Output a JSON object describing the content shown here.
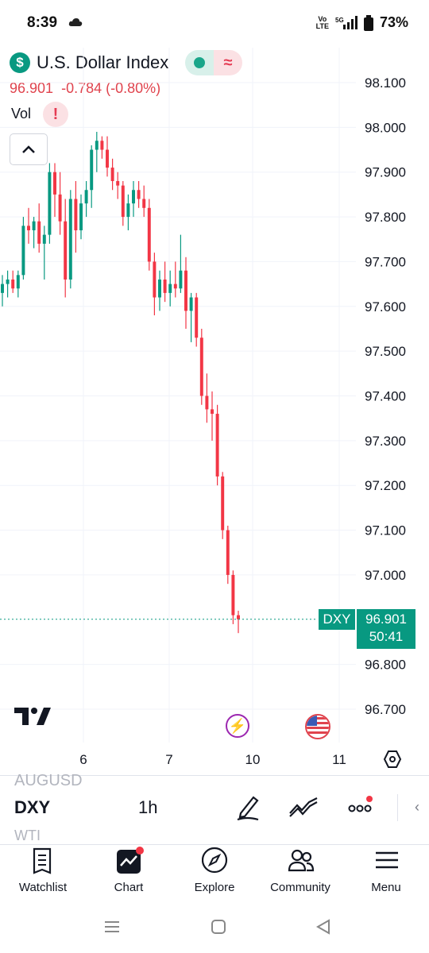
{
  "status_bar": {
    "time": "8:39",
    "volte_top": "Vo",
    "volte_bottom": "LTE",
    "network": "5G",
    "battery": "73%"
  },
  "header": {
    "symbol_name": "U.S. Dollar Index",
    "logo_glyph": "$",
    "price": "96.901",
    "change": "-0.784",
    "change_pct": "(-0.80%)",
    "vol_label": "Vol",
    "vol_alert": "!"
  },
  "chart_data": {
    "type": "candlestick",
    "symbol": "DXY",
    "interval": "1h",
    "y_ticks": [
      "98.100",
      "98.000",
      "97.900",
      "97.800",
      "97.700",
      "97.600",
      "97.500",
      "97.400",
      "97.300",
      "97.200",
      "97.100",
      "97.000",
      "96.800",
      "96.700"
    ],
    "ylim": [
      96.65,
      98.17
    ],
    "x_ticks": [
      "6",
      "7",
      "10",
      "11"
    ],
    "last_price": 96.901,
    "last_label": "DXY",
    "last_price_text": "96.901",
    "countdown": "50:41",
    "colors": {
      "up": "#089981",
      "down": "#f23645"
    },
    "candles": [
      [
        97.63,
        97.67,
        97.6,
        97.65
      ],
      [
        97.65,
        97.68,
        97.62,
        97.66
      ],
      [
        97.66,
        97.68,
        97.63,
        97.64
      ],
      [
        97.64,
        97.68,
        97.62,
        97.67
      ],
      [
        97.67,
        97.8,
        97.66,
        97.78
      ],
      [
        97.78,
        97.82,
        97.74,
        97.77
      ],
      [
        97.77,
        97.8,
        97.73,
        97.79
      ],
      [
        97.79,
        97.83,
        97.72,
        97.74
      ],
      [
        97.74,
        97.78,
        97.66,
        97.76
      ],
      [
        97.76,
        97.92,
        97.74,
        97.9
      ],
      [
        97.9,
        97.92,
        97.8,
        97.85
      ],
      [
        97.85,
        97.9,
        97.76,
        97.79
      ],
      [
        97.79,
        97.84,
        97.62,
        97.66
      ],
      [
        97.66,
        97.86,
        97.64,
        97.84
      ],
      [
        97.84,
        97.88,
        97.72,
        97.77
      ],
      [
        97.77,
        97.85,
        97.75,
        97.83
      ],
      [
        97.83,
        97.88,
        97.8,
        97.86
      ],
      [
        97.86,
        97.96,
        97.82,
        97.95
      ],
      [
        97.95,
        97.99,
        97.9,
        97.97
      ],
      [
        97.97,
        97.98,
        97.93,
        97.95
      ],
      [
        97.95,
        97.98,
        97.89,
        97.91
      ],
      [
        97.91,
        97.93,
        97.86,
        97.88
      ],
      [
        97.88,
        97.9,
        97.84,
        97.87
      ],
      [
        97.87,
        97.88,
        97.78,
        97.8
      ],
      [
        97.8,
        97.85,
        97.77,
        97.83
      ],
      [
        97.83,
        97.88,
        97.8,
        97.86
      ],
      [
        97.86,
        97.88,
        97.82,
        97.84
      ],
      [
        97.84,
        97.87,
        97.8,
        97.82
      ],
      [
        97.82,
        97.84,
        97.68,
        97.7
      ],
      [
        97.7,
        97.72,
        97.58,
        97.62
      ],
      [
        97.62,
        97.68,
        97.59,
        97.66
      ],
      [
        97.66,
        97.7,
        97.61,
        97.63
      ],
      [
        97.63,
        97.68,
        97.6,
        97.65
      ],
      [
        97.65,
        97.7,
        97.62,
        97.64
      ],
      [
        97.64,
        97.76,
        97.63,
        97.68
      ],
      [
        97.68,
        97.71,
        97.55,
        97.59
      ],
      [
        97.59,
        97.63,
        97.52,
        97.62
      ],
      [
        97.62,
        97.63,
        97.51,
        97.53
      ],
      [
        97.53,
        97.55,
        97.38,
        97.4
      ],
      [
        97.4,
        97.45,
        97.34,
        97.37
      ],
      [
        97.37,
        97.41,
        97.3,
        97.36
      ],
      [
        97.36,
        97.38,
        97.2,
        97.22
      ],
      [
        97.22,
        97.23,
        97.08,
        97.1
      ],
      [
        97.1,
        97.11,
        96.98,
        97.0
      ],
      [
        97.0,
        97.01,
        96.89,
        96.91
      ],
      [
        96.91,
        96.92,
        96.87,
        96.901
      ]
    ]
  },
  "toolbar": {
    "prev_symbol": "AUGUSD",
    "current_symbol": "DXY",
    "next_symbol": "WTI",
    "interval": "1h"
  },
  "bottom_nav": [
    {
      "label": "Watchlist",
      "icon": "watchlist-icon"
    },
    {
      "label": "Chart",
      "icon": "chart-icon"
    },
    {
      "label": "Explore",
      "icon": "compass-icon"
    },
    {
      "label": "Community",
      "icon": "community-icon"
    },
    {
      "label": "Menu",
      "icon": "menu-icon"
    }
  ]
}
